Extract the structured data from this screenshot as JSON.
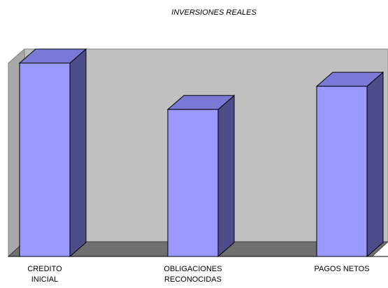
{
  "chart_data": {
    "type": "bar3d",
    "title": "INVERSIONES REALES",
    "categories": [
      "CREDITO INICIAL",
      "OBLIGACIONES RECONOCIDAS",
      "PAGOS NETOS"
    ],
    "values": [
      100,
      76,
      88
    ],
    "color": "#9999ff"
  }
}
